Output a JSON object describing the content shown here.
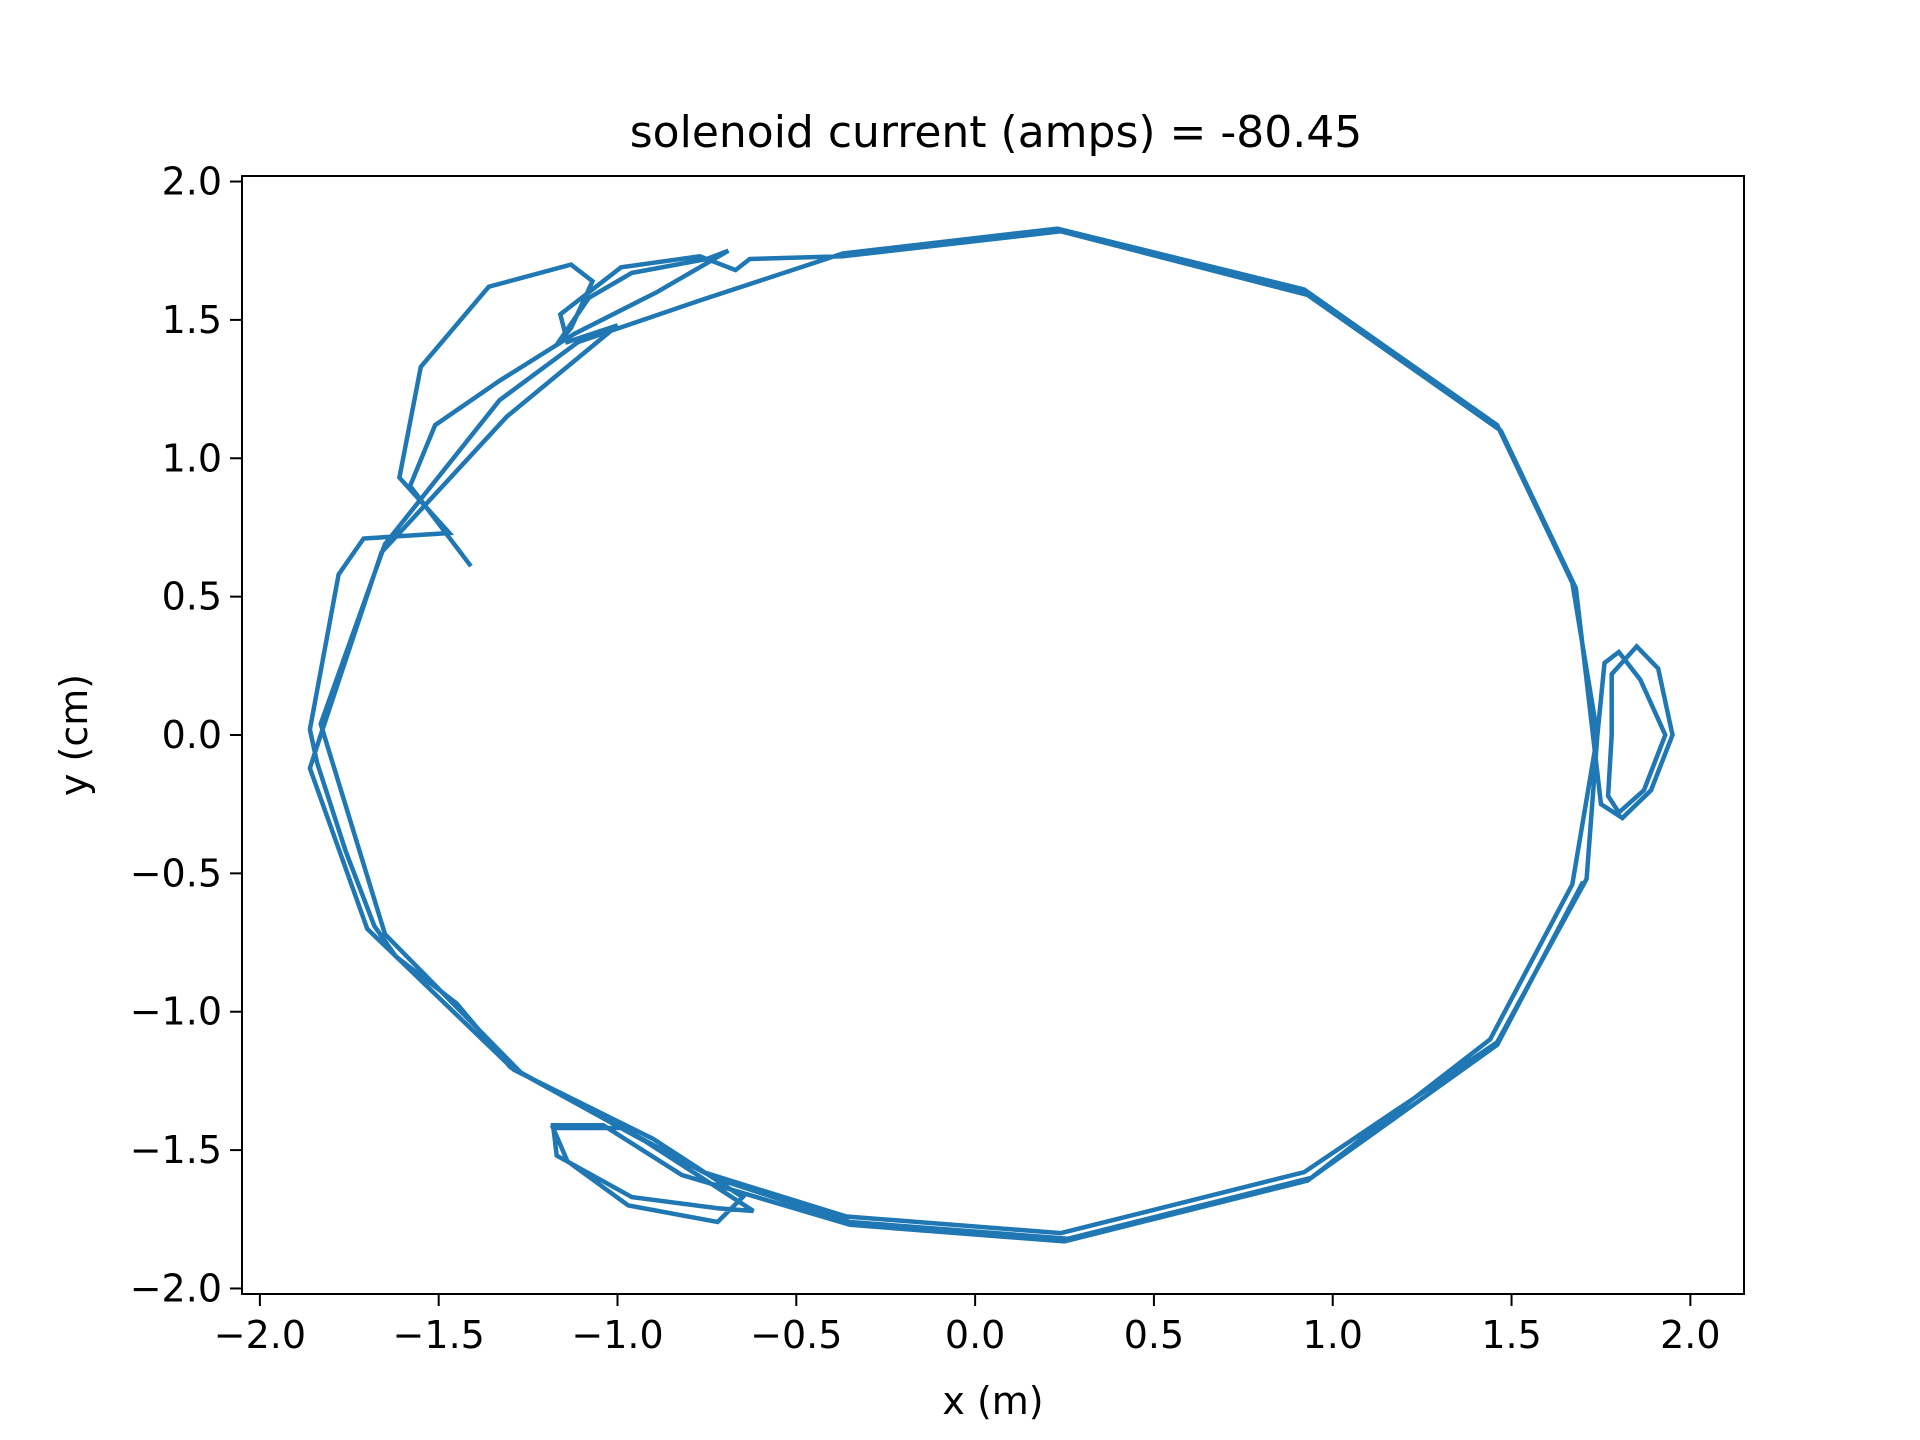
{
  "chart_data": {
    "type": "line",
    "title": "solenoid current (amps) = -80.45",
    "xlabel": "x (m)",
    "ylabel": "y (cm)",
    "xlim": [
      -2.05,
      2.15
    ],
    "ylim": [
      -2.02,
      2.02
    ],
    "xticks": [
      -2.0,
      -1.5,
      -1.0,
      -0.5,
      0.0,
      0.5,
      1.0,
      1.5,
      2.0
    ],
    "xtick_labels": [
      "−2.0",
      "−1.5",
      "−1.0",
      "−0.5",
      "0.0",
      "0.5",
      "1.0",
      "1.5",
      "2.0"
    ],
    "yticks": [
      -2.0,
      -1.5,
      -1.0,
      -0.5,
      0.0,
      0.5,
      1.0,
      1.5,
      2.0
    ],
    "ytick_labels": [
      "−2.0",
      "−1.5",
      "−1.0",
      "−0.5",
      "0.0",
      "0.5",
      "1.0",
      "1.5",
      "2.0"
    ],
    "grid": false,
    "color": "#1f77b4",
    "series": [
      {
        "points": [
          [
            -1.41,
            0.61
          ],
          [
            -1.58,
            0.9
          ],
          [
            -1.51,
            1.12
          ],
          [
            -1.33,
            1.28
          ],
          [
            -1.12,
            1.45
          ],
          [
            -0.89,
            1.6
          ],
          [
            -0.69,
            1.75
          ],
          [
            -0.75,
            1.72
          ],
          [
            -0.96,
            1.67
          ],
          [
            -1.08,
            1.58
          ],
          [
            -1.17,
            1.41
          ],
          [
            -1.13,
            1.47
          ],
          [
            -1.07,
            1.64
          ],
          [
            -1.13,
            1.7
          ],
          [
            -1.36,
            1.62
          ],
          [
            -1.55,
            1.33
          ],
          [
            -1.61,
            0.93
          ],
          [
            -1.47,
            0.73
          ],
          [
            -1.71,
            0.71
          ],
          [
            -1.78,
            0.58
          ],
          [
            -1.86,
            0.02
          ],
          [
            -1.84,
            -0.1
          ],
          [
            -1.76,
            -0.42
          ],
          [
            -1.68,
            -0.69
          ],
          [
            -1.62,
            -0.8
          ],
          [
            -1.45,
            -0.97
          ],
          [
            -1.3,
            -1.2
          ],
          [
            -0.92,
            -1.47
          ],
          [
            -0.62,
            -1.72
          ],
          [
            -0.72,
            -1.71
          ],
          [
            -0.96,
            -1.67
          ],
          [
            -1.17,
            -1.52
          ],
          [
            -1.18,
            -1.41
          ],
          [
            -1.04,
            -1.41
          ],
          [
            -0.82,
            -1.59
          ],
          [
            -0.35,
            -1.77
          ],
          [
            0.25,
            -1.83
          ],
          [
            0.93,
            -1.61
          ],
          [
            1.44,
            -1.1
          ],
          [
            1.67,
            -0.54
          ],
          [
            1.74,
            0.0
          ],
          [
            1.67,
            0.55
          ],
          [
            1.46,
            1.12
          ],
          [
            0.92,
            1.61
          ],
          [
            0.23,
            1.83
          ],
          [
            -0.37,
            1.74
          ],
          [
            -0.77,
            1.57
          ],
          [
            -1.11,
            1.42
          ],
          [
            -1.33,
            1.21
          ],
          [
            -1.65,
            0.69
          ],
          [
            -1.83,
            0.04
          ],
          [
            -1.65,
            -0.72
          ],
          [
            -1.27,
            -1.22
          ],
          [
            -0.76,
            -1.58
          ],
          [
            -0.36,
            -1.74
          ],
          [
            0.24,
            -1.8
          ],
          [
            0.92,
            -1.58
          ],
          [
            1.46,
            -1.11
          ],
          [
            1.71,
            -0.52
          ],
          [
            1.74,
            0.0
          ],
          [
            1.76,
            0.26
          ],
          [
            1.8,
            0.3
          ],
          [
            1.86,
            0.2
          ],
          [
            1.93,
            0.0
          ],
          [
            1.87,
            -0.2
          ],
          [
            1.8,
            -0.28
          ],
          [
            1.77,
            -0.22
          ],
          [
            1.78,
            0.0
          ],
          [
            1.78,
            0.22
          ],
          [
            1.85,
            0.32
          ],
          [
            1.91,
            0.24
          ],
          [
            1.95,
            0.0
          ],
          [
            1.89,
            -0.2
          ],
          [
            1.81,
            -0.3
          ],
          [
            1.75,
            -0.25
          ],
          [
            1.68,
            0.53
          ],
          [
            1.47,
            1.1
          ],
          [
            0.93,
            1.59
          ],
          [
            0.24,
            1.82
          ],
          [
            -0.37,
            1.73
          ],
          [
            -0.63,
            1.72
          ],
          [
            -0.67,
            1.68
          ],
          [
            -0.77,
            1.73
          ],
          [
            -0.99,
            1.69
          ],
          [
            -1.16,
            1.52
          ],
          [
            -1.14,
            1.42
          ],
          [
            -1.0,
            1.48
          ],
          [
            -1.31,
            1.15
          ],
          [
            -1.66,
            0.66
          ],
          [
            -1.83,
            0.0
          ],
          [
            -1.86,
            -0.12
          ],
          [
            -1.7,
            -0.7
          ],
          [
            -1.29,
            -1.21
          ],
          [
            -0.9,
            -1.46
          ],
          [
            -0.65,
            -1.67
          ],
          [
            -0.72,
            -1.76
          ],
          [
            -0.97,
            -1.7
          ],
          [
            -1.14,
            -1.54
          ],
          [
            -1.18,
            -1.42
          ],
          [
            -0.99,
            -1.42
          ],
          [
            -0.73,
            -1.6
          ],
          [
            -0.35,
            -1.76
          ],
          [
            0.26,
            -1.82
          ],
          [
            0.94,
            -1.6
          ],
          [
            1.46,
            -1.12
          ],
          [
            1.7,
            -0.53
          ]
        ]
      }
    ]
  }
}
